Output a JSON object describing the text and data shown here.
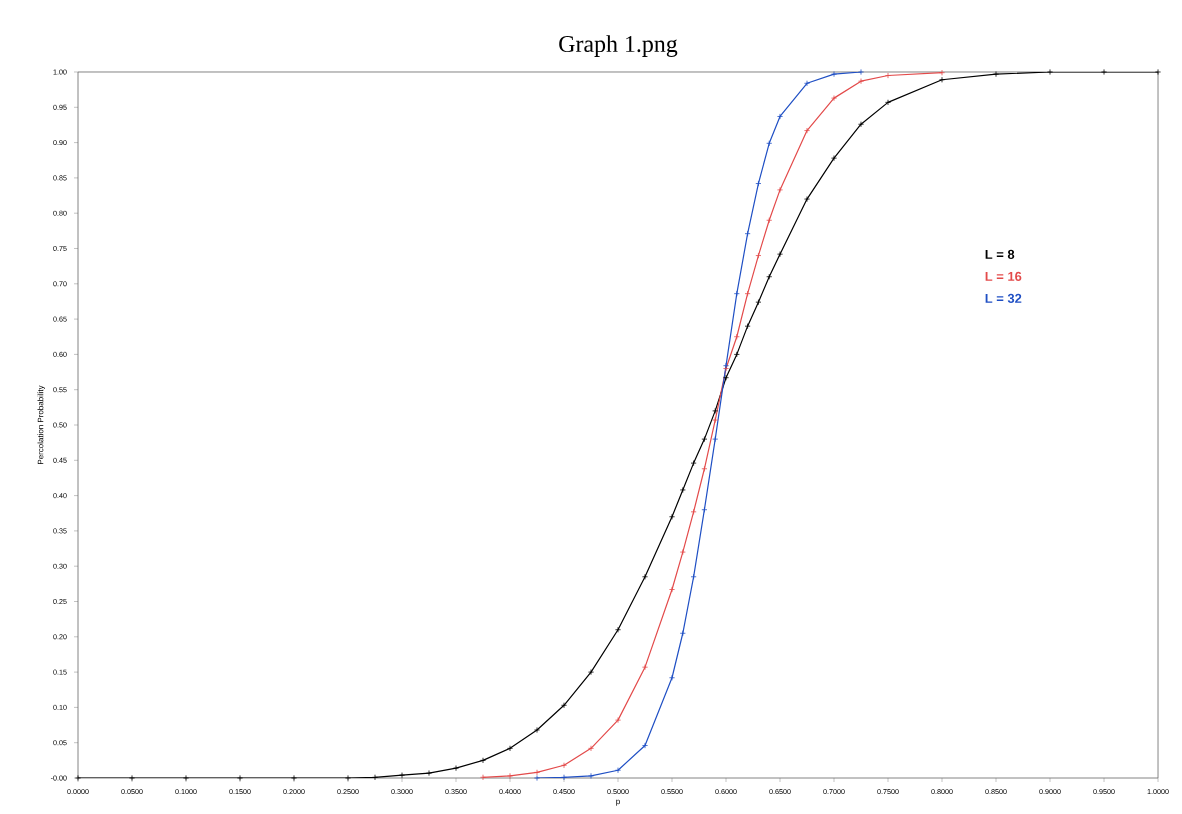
{
  "chart_data": {
    "type": "line",
    "title": "Graph 1.png",
    "xlabel": "p",
    "ylabel": "Percolation Probability",
    "xlim": [
      0,
      1
    ],
    "ylim": [
      0,
      1
    ],
    "xticks": [
      {
        "value": 0,
        "label": "0.0000"
      },
      {
        "value": 0.05,
        "label": "0.0500"
      },
      {
        "value": 0.1,
        "label": "0.1000"
      },
      {
        "value": 0.15,
        "label": "0.1500"
      },
      {
        "value": 0.2,
        "label": "0.2000"
      },
      {
        "value": 0.25,
        "label": "0.2500"
      },
      {
        "value": 0.3,
        "label": "0.3000"
      },
      {
        "value": 0.35,
        "label": "0.3500"
      },
      {
        "value": 0.4,
        "label": "0.4000"
      },
      {
        "value": 0.45,
        "label": "0.4500"
      },
      {
        "value": 0.5,
        "label": "0.5000"
      },
      {
        "value": 0.55,
        "label": "0.5500"
      },
      {
        "value": 0.6,
        "label": "0.6000"
      },
      {
        "value": 0.65,
        "label": "0.6500"
      },
      {
        "value": 0.7,
        "label": "0.7000"
      },
      {
        "value": 0.75,
        "label": "0.7500"
      },
      {
        "value": 0.8,
        "label": "0.8000"
      },
      {
        "value": 0.85,
        "label": "0.8500"
      },
      {
        "value": 0.9,
        "label": "0.9000"
      },
      {
        "value": 0.95,
        "label": "0.9500"
      },
      {
        "value": 1,
        "label": "1.0000"
      }
    ],
    "yticks": [
      {
        "value": 0,
        "label": "-0.00"
      },
      0.05,
      {
        "value": 0.1,
        "label": "0.10"
      },
      0.15,
      {
        "value": 0.2,
        "label": "0.20"
      },
      0.25,
      {
        "value": 0.3,
        "label": "0.30"
      },
      0.35,
      {
        "value": 0.4,
        "label": "0.40"
      },
      0.45,
      {
        "value": 0.5,
        "label": "0.50"
      },
      0.55,
      {
        "value": 0.6,
        "label": "0.60"
      },
      0.65,
      {
        "value": 0.7,
        "label": "0.70"
      },
      0.75,
      {
        "value": 0.8,
        "label": "0.80"
      },
      0.85,
      {
        "value": 0.9,
        "label": "0.90"
      },
      0.95,
      {
        "value": 1,
        "label": "1.00"
      }
    ],
    "marker": "cross",
    "legend": "right",
    "grid": false,
    "series": [
      {
        "name": "L = 8",
        "color": "#000000",
        "x": [
          0,
          0.05,
          0.1,
          0.15,
          0.2,
          0.25,
          0.275,
          0.3,
          0.325,
          0.35,
          0.375,
          0.4,
          0.425,
          0.45,
          0.475,
          0.5,
          0.525,
          0.55,
          0.56,
          0.57,
          0.58,
          0.59,
          0.6,
          0.61,
          0.62,
          0.63,
          0.64,
          0.65,
          0.675,
          0.7,
          0.725,
          0.75,
          0.8,
          0.85,
          0.9,
          0.95,
          1
        ],
        "values": [
          0,
          0,
          0,
          0,
          0,
          0,
          0.001,
          0.004,
          0.007,
          0.014,
          0.025,
          0.042,
          0.068,
          0.103,
          0.15,
          0.21,
          0.285,
          0.37,
          0.408,
          0.446,
          0.48,
          0.52,
          0.567,
          0.6,
          0.64,
          0.674,
          0.71,
          0.742,
          0.82,
          0.878,
          0.926,
          0.957,
          0.989,
          0.997,
          1,
          1,
          1
        ]
      },
      {
        "name": "L = 16",
        "color": "#e34a4a",
        "x": [
          0.375,
          0.4,
          0.425,
          0.45,
          0.475,
          0.5,
          0.525,
          0.55,
          0.56,
          0.57,
          0.58,
          0.59,
          0.6,
          0.61,
          0.62,
          0.63,
          0.64,
          0.65,
          0.675,
          0.7,
          0.725,
          0.75,
          0.8
        ],
        "values": [
          0.001,
          0.003,
          0.008,
          0.018,
          0.042,
          0.082,
          0.157,
          0.267,
          0.32,
          0.377,
          0.438,
          0.507,
          0.58,
          0.625,
          0.686,
          0.74,
          0.79,
          0.833,
          0.917,
          0.963,
          0.987,
          0.995,
          0.999
        ]
      },
      {
        "name": "L = 32",
        "color": "#1f4fc4",
        "x": [
          0.425,
          0.45,
          0.475,
          0.5,
          0.525,
          0.55,
          0.56,
          0.57,
          0.58,
          0.59,
          0.6,
          0.61,
          0.62,
          0.63,
          0.64,
          0.65,
          0.675,
          0.7,
          0.725
        ],
        "values": [
          0,
          0.001,
          0.003,
          0.011,
          0.046,
          0.142,
          0.205,
          0.285,
          0.38,
          0.48,
          0.584,
          0.686,
          0.771,
          0.842,
          0.899,
          0.937,
          0.984,
          0.997,
          1
        ]
      }
    ]
  }
}
